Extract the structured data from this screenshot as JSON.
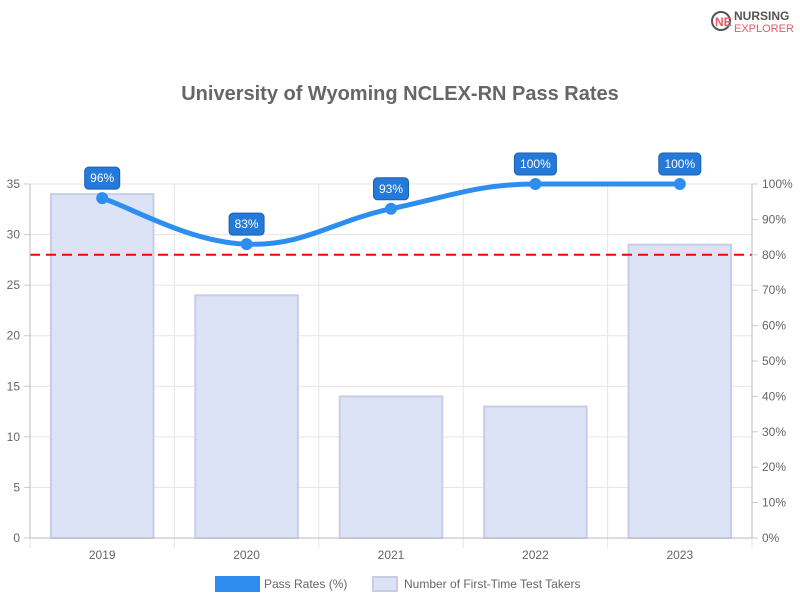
{
  "logo": {
    "line1": "NURSING",
    "line2": "EXPLORER"
  },
  "chart_data": {
    "type": "bar+line",
    "title": "University of Wyoming NCLEX-RN Pass Rates",
    "categories": [
      "2019",
      "2020",
      "2021",
      "2022",
      "2023"
    ],
    "series": [
      {
        "name": "Pass Rates (%)",
        "type": "line",
        "axis": "right",
        "values": [
          96,
          83,
          93,
          100,
          100
        ],
        "labels": [
          "96%",
          "83%",
          "93%",
          "100%",
          "100%"
        ],
        "color": "#2e8ef0"
      },
      {
        "name": "Number of First-Time Test Takers",
        "type": "bar",
        "axis": "left",
        "values": [
          34,
          24,
          14,
          13,
          29
        ],
        "color": "#dce3f7",
        "border": "#c8cde6"
      }
    ],
    "left_axis": {
      "ylim": [
        0,
        35
      ],
      "ticks": [
        "0",
        "5",
        "10",
        "15",
        "20",
        "25",
        "30",
        "35"
      ]
    },
    "right_axis": {
      "ylim": [
        0,
        100
      ],
      "ticks": [
        "0%",
        "10%",
        "20%",
        "30%",
        "40%",
        "50%",
        "60%",
        "70%",
        "80%",
        "90%",
        "100%"
      ]
    },
    "reference_line": {
      "value": 80,
      "axis": "right",
      "color": "#ff0000",
      "style": "dashed"
    },
    "grid": true,
    "legend": "bottom"
  }
}
